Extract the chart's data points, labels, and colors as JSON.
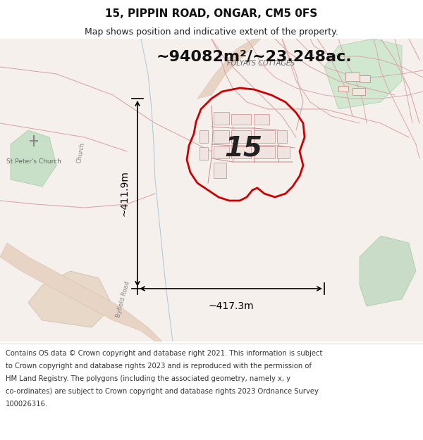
{
  "title_line1": "15, PIPPIN ROAD, ONGAR, CM5 0FS",
  "title_line2": "Map shows position and indicative extent of the property.",
  "area_text": "~94082m²/~23.248ac.",
  "label_15": "15",
  "label_width": "~417.3m",
  "label_height": "~411.9m",
  "label_cottages": "FOLYATS COTTAGES",
  "footer_text": "Contains OS data © Crown copyright and database right 2021. This information is subject to Crown copyright and database rights 2023 and is reproduced with the permission of HM Land Registry. The polygons (including the associated geometry, namely x, y co-ordinates) are subject to Crown copyright and database rights 2023 Ordnance Survey 100026316.",
  "bg_color": "#f5f0eb",
  "map_bg": "#f8f4f0",
  "header_bg": "#ffffff",
  "footer_bg": "#ffffff",
  "red_polygon_color": "#cc0000",
  "light_red_line": "#e8a0a0",
  "green_area": "#c8dfc8",
  "road_color": "#e0c8c0",
  "water_color": "#b8d8e8",
  "measurement_line_color": "#000000",
  "text_color": "#333333"
}
